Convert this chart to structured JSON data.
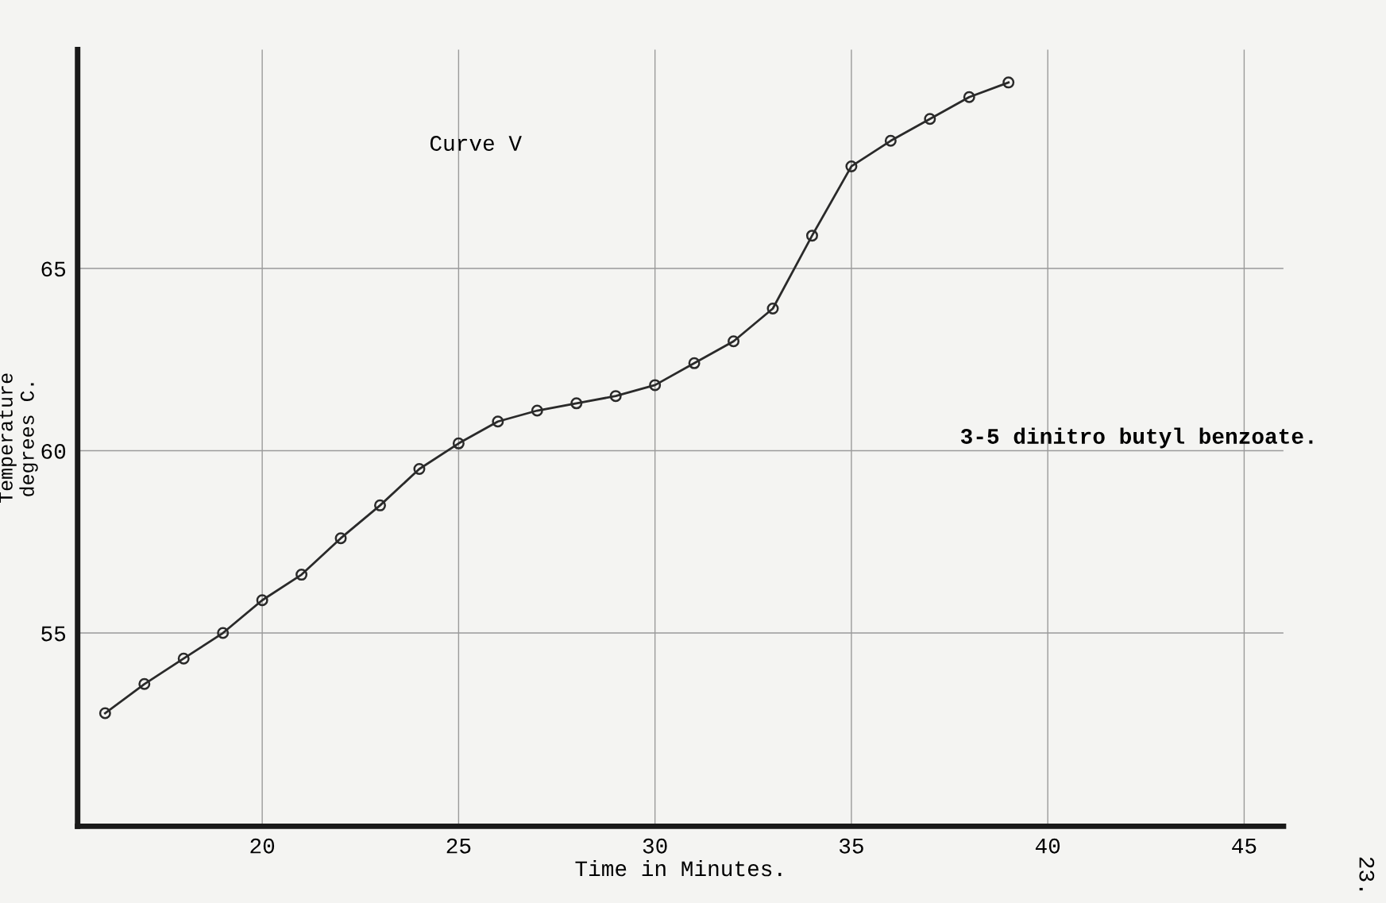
{
  "chart_data": {
    "type": "line",
    "title": "Curve V",
    "xlabel": "Time in Minutes.",
    "ylabel": "Temperature\ndegrees C.",
    "annotations": [
      "3-5 dinitro butyl benzoate.",
      "23."
    ],
    "x": [
      16,
      17,
      18,
      19,
      20,
      21,
      22,
      23,
      24,
      25,
      26,
      27,
      28,
      29,
      30,
      31,
      32,
      33,
      34,
      35,
      36,
      37,
      38,
      39
    ],
    "series": [
      {
        "color": "#2a2a2a",
        "values": [
          52.8,
          53.6,
          54.3,
          55.0,
          55.9,
          56.6,
          57.6,
          58.5,
          59.5,
          60.2,
          60.8,
          61.1,
          61.3,
          61.5,
          61.8,
          62.4,
          63.0,
          63.9,
          65.9,
          67.8,
          68.5,
          69.1,
          69.7,
          70.1
        ]
      }
    ],
    "xlim": [
      15.3,
      46
    ],
    "ylim": [
      49.7,
      71
    ],
    "xticks": [
      20,
      25,
      30,
      35,
      40,
      45
    ],
    "yticks": [
      55,
      60,
      65
    ],
    "grid": true,
    "marker": "circle",
    "line_style": "solid"
  }
}
